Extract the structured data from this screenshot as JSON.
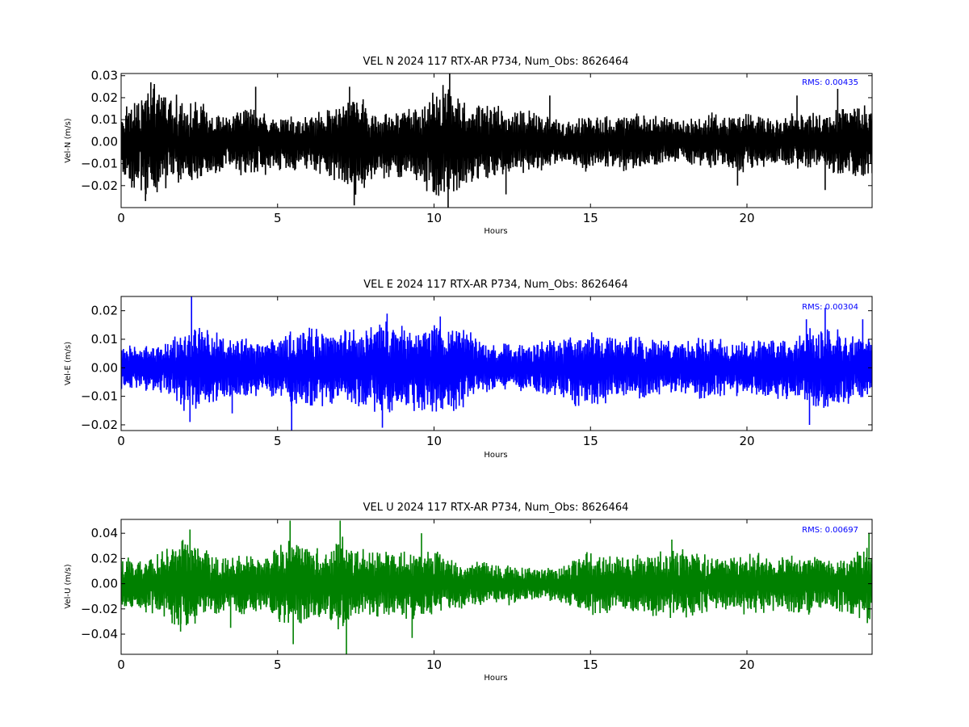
{
  "chart_data": [
    {
      "type": "line",
      "title": "VEL N 2024 117 RTX-AR  P734, Num_Obs: 8626464",
      "xlabel": "Hours",
      "ylabel": "Vel-N (m/s)",
      "xlim": [
        0,
        24
      ],
      "ylim": [
        -0.03,
        0.031
      ],
      "xticks": [
        0,
        5,
        10,
        15,
        20
      ],
      "xtick_labels": [
        "0",
        "5",
        "10",
        "15",
        "20"
      ],
      "yticks": [
        -0.02,
        -0.01,
        0.0,
        0.01,
        0.02,
        0.03
      ],
      "ytick_labels": [
        "−0.02",
        "−0.01",
        "0.00",
        "0.01",
        "0.02",
        "0.03"
      ],
      "annotation": "RMS:  0.00435",
      "annotation_color": "#0000ff",
      "grid": false,
      "series": [
        {
          "color": "#000000",
          "envelope": {
            "x": [
              0,
              0.5,
              1,
              1.5,
              2,
              2.5,
              3,
              3.5,
              4,
              4.5,
              5,
              5.5,
              6,
              6.5,
              7,
              7.5,
              8,
              8.5,
              9,
              9.5,
              10,
              10.5,
              11,
              11.5,
              12,
              12.5,
              13,
              13.5,
              14,
              14.5,
              15,
              15.5,
              16,
              16.5,
              17,
              17.5,
              18,
              18.5,
              19,
              19.5,
              20,
              20.5,
              21,
              21.5,
              22,
              22.5,
              23,
              23.5,
              24
            ],
            "max": [
              0.014,
              0.018,
              0.024,
              0.021,
              0.017,
              0.016,
              0.012,
              0.011,
              0.016,
              0.012,
              0.012,
              0.011,
              0.012,
              0.013,
              0.018,
              0.022,
              0.013,
              0.012,
              0.014,
              0.015,
              0.021,
              0.026,
              0.016,
              0.015,
              0.016,
              0.013,
              0.014,
              0.012,
              0.009,
              0.01,
              0.012,
              0.011,
              0.012,
              0.013,
              0.011,
              0.01,
              0.01,
              0.011,
              0.012,
              0.011,
              0.012,
              0.011,
              0.01,
              0.012,
              0.013,
              0.011,
              0.016,
              0.016,
              0.014
            ],
            "min": [
              -0.016,
              -0.022,
              -0.024,
              -0.02,
              -0.017,
              -0.016,
              -0.013,
              -0.012,
              -0.016,
              -0.014,
              -0.012,
              -0.012,
              -0.013,
              -0.014,
              -0.019,
              -0.023,
              -0.016,
              -0.016,
              -0.016,
              -0.017,
              -0.023,
              -0.026,
              -0.019,
              -0.017,
              -0.016,
              -0.014,
              -0.014,
              -0.012,
              -0.009,
              -0.011,
              -0.013,
              -0.012,
              -0.013,
              -0.013,
              -0.01,
              -0.01,
              -0.009,
              -0.01,
              -0.011,
              -0.011,
              -0.014,
              -0.011,
              -0.01,
              -0.011,
              -0.011,
              -0.011,
              -0.015,
              -0.016,
              -0.014
            ]
          },
          "spikes": [
            {
              "x": 0.95,
              "y": 0.027
            },
            {
              "x": 0.78,
              "y": -0.027
            },
            {
              "x": 4.3,
              "y": 0.025
            },
            {
              "x": 7.45,
              "y": -0.029
            },
            {
              "x": 7.3,
              "y": 0.025
            },
            {
              "x": 10.5,
              "y": 0.031
            },
            {
              "x": 10.45,
              "y": -0.03
            },
            {
              "x": 12.3,
              "y": -0.024
            },
            {
              "x": 13.7,
              "y": 0.021
            },
            {
              "x": 19.7,
              "y": -0.02
            },
            {
              "x": 21.6,
              "y": 0.021
            },
            {
              "x": 22.9,
              "y": 0.024
            },
            {
              "x": 22.5,
              "y": -0.022
            }
          ]
        }
      ]
    },
    {
      "type": "line",
      "title": "VEL E 2024 117 RTX-AR  P734, Num_Obs: 8626464",
      "xlabel": "Hours",
      "ylabel": "Vel-E (m/s)",
      "xlim": [
        0,
        24
      ],
      "ylim": [
        -0.022,
        0.025
      ],
      "xticks": [
        0,
        5,
        10,
        15,
        20
      ],
      "xtick_labels": [
        "0",
        "5",
        "10",
        "15",
        "20"
      ],
      "yticks": [
        -0.02,
        -0.01,
        0.0,
        0.01,
        0.02
      ],
      "ytick_labels": [
        "−0.02",
        "−0.01",
        "0.00",
        "0.01",
        "0.02"
      ],
      "annotation": "RMS:  0.00304",
      "annotation_color": "#0000ff",
      "grid": false,
      "series": [
        {
          "color": "#0000ff",
          "envelope": {
            "x": [
              0,
              0.5,
              1,
              1.5,
              2,
              2.5,
              3,
              3.5,
              4,
              4.5,
              5,
              5.5,
              6,
              6.5,
              7,
              7.5,
              8,
              8.5,
              9,
              9.5,
              10,
              10.5,
              11,
              11.5,
              12,
              12.5,
              13,
              13.5,
              14,
              14.5,
              15,
              15.5,
              16,
              16.5,
              17,
              17.5,
              18,
              18.5,
              19,
              19.5,
              20,
              20.5,
              21,
              21.5,
              22,
              22.5,
              23,
              23.5,
              24
            ],
            "max": [
              0.007,
              0.007,
              0.007,
              0.008,
              0.012,
              0.013,
              0.011,
              0.01,
              0.01,
              0.009,
              0.009,
              0.012,
              0.013,
              0.012,
              0.012,
              0.013,
              0.013,
              0.016,
              0.014,
              0.013,
              0.014,
              0.015,
              0.013,
              0.009,
              0.008,
              0.008,
              0.008,
              0.009,
              0.01,
              0.011,
              0.012,
              0.011,
              0.01,
              0.01,
              0.01,
              0.009,
              0.009,
              0.01,
              0.01,
              0.009,
              0.009,
              0.009,
              0.009,
              0.01,
              0.013,
              0.013,
              0.012,
              0.011,
              0.01
            ],
            "min": [
              -0.007,
              -0.007,
              -0.008,
              -0.009,
              -0.014,
              -0.014,
              -0.011,
              -0.01,
              -0.01,
              -0.009,
              -0.01,
              -0.013,
              -0.014,
              -0.012,
              -0.012,
              -0.013,
              -0.014,
              -0.015,
              -0.014,
              -0.014,
              -0.015,
              -0.015,
              -0.012,
              -0.008,
              -0.008,
              -0.008,
              -0.008,
              -0.009,
              -0.01,
              -0.012,
              -0.013,
              -0.011,
              -0.01,
              -0.01,
              -0.01,
              -0.009,
              -0.009,
              -0.01,
              -0.01,
              -0.009,
              -0.01,
              -0.009,
              -0.01,
              -0.01,
              -0.013,
              -0.014,
              -0.013,
              -0.011,
              -0.01
            ]
          },
          "spikes": [
            {
              "x": 2.25,
              "y": 0.025
            },
            {
              "x": 2.2,
              "y": -0.019
            },
            {
              "x": 5.45,
              "y": -0.022
            },
            {
              "x": 8.35,
              "y": -0.021
            },
            {
              "x": 8.5,
              "y": 0.019
            },
            {
              "x": 10.2,
              "y": 0.018
            },
            {
              "x": 21.9,
              "y": 0.017
            },
            {
              "x": 22.0,
              "y": -0.02
            },
            {
              "x": 22.5,
              "y": 0.021
            },
            {
              "x": 23.7,
              "y": 0.017
            },
            {
              "x": 3.55,
              "y": -0.016
            }
          ]
        }
      ]
    },
    {
      "type": "line",
      "title": "VEL U 2024 117 RTX-AR  P734, Num_Obs: 8626464",
      "xlabel": "Hours",
      "ylabel": "Vel-U (m/s)",
      "xlim": [
        0,
        24
      ],
      "ylim": [
        -0.056,
        0.051
      ],
      "xticks": [
        0,
        5,
        10,
        15,
        20
      ],
      "xtick_labels": [
        "0",
        "5",
        "10",
        "15",
        "20"
      ],
      "yticks": [
        -0.04,
        -0.02,
        0.0,
        0.02,
        0.04
      ],
      "ytick_labels": [
        "−0.04",
        "−0.02",
        "0.00",
        "0.02",
        "0.04"
      ],
      "annotation": "RMS:  0.00697",
      "annotation_color": "#0000ff",
      "grid": false,
      "series": [
        {
          "color": "#008000",
          "envelope": {
            "x": [
              0,
              0.5,
              1,
              1.5,
              2,
              2.5,
              3,
              3.5,
              4,
              4.5,
              5,
              5.5,
              6,
              6.5,
              7,
              7.5,
              8,
              8.5,
              9,
              9.5,
              10,
              10.5,
              11,
              11.5,
              12,
              12.5,
              13,
              13.5,
              14,
              14.5,
              15,
              15.5,
              16,
              16.5,
              17,
              17.5,
              18,
              18.5,
              19,
              19.5,
              20,
              20.5,
              21,
              21.5,
              22,
              22.5,
              23,
              23.5,
              24
            ],
            "max": [
              0.02,
              0.018,
              0.02,
              0.03,
              0.034,
              0.028,
              0.02,
              0.02,
              0.023,
              0.018,
              0.027,
              0.033,
              0.028,
              0.022,
              0.034,
              0.028,
              0.023,
              0.025,
              0.027,
              0.025,
              0.024,
              0.02,
              0.016,
              0.016,
              0.015,
              0.014,
              0.012,
              0.012,
              0.013,
              0.018,
              0.023,
              0.02,
              0.019,
              0.021,
              0.022,
              0.025,
              0.025,
              0.022,
              0.02,
              0.021,
              0.022,
              0.022,
              0.019,
              0.022,
              0.02,
              0.019,
              0.02,
              0.024,
              0.03
            ],
            "min": [
              -0.02,
              -0.019,
              -0.022,
              -0.028,
              -0.033,
              -0.028,
              -0.022,
              -0.02,
              -0.024,
              -0.02,
              -0.028,
              -0.033,
              -0.028,
              -0.024,
              -0.037,
              -0.026,
              -0.024,
              -0.025,
              -0.028,
              -0.024,
              -0.024,
              -0.02,
              -0.017,
              -0.016,
              -0.015,
              -0.015,
              -0.012,
              -0.012,
              -0.014,
              -0.019,
              -0.024,
              -0.021,
              -0.02,
              -0.022,
              -0.024,
              -0.026,
              -0.025,
              -0.022,
              -0.02,
              -0.021,
              -0.023,
              -0.022,
              -0.02,
              -0.022,
              -0.022,
              -0.02,
              -0.021,
              -0.024,
              -0.03
            ]
          },
          "spikes": [
            {
              "x": 2.2,
              "y": 0.043
            },
            {
              "x": 5.4,
              "y": 0.05
            },
            {
              "x": 5.5,
              "y": -0.048
            },
            {
              "x": 7.0,
              "y": 0.05
            },
            {
              "x": 7.2,
              "y": -0.056
            },
            {
              "x": 9.3,
              "y": -0.043
            },
            {
              "x": 9.6,
              "y": 0.04
            },
            {
              "x": 1.9,
              "y": -0.038
            },
            {
              "x": 17.6,
              "y": 0.035
            },
            {
              "x": 23.9,
              "y": 0.04
            },
            {
              "x": 3.5,
              "y": -0.035
            }
          ]
        }
      ]
    }
  ]
}
